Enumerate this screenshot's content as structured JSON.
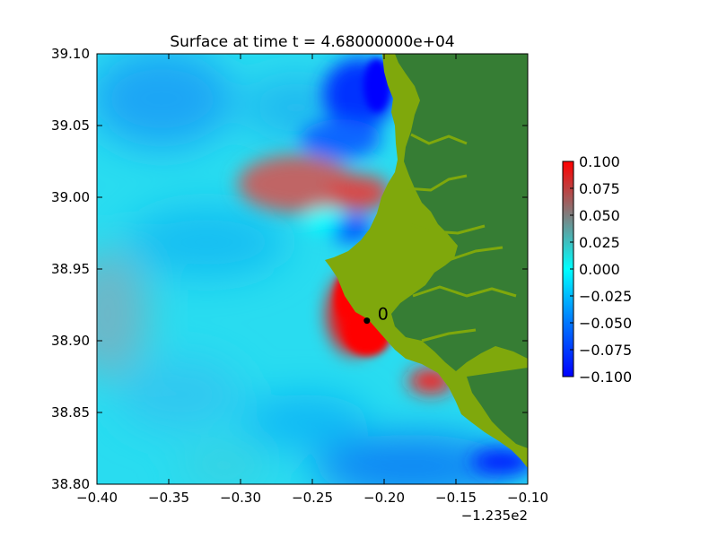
{
  "chart_data": {
    "type": "heatmap",
    "title": "Surface at time t = 4.68000000e+04",
    "xlim": [
      -0.4,
      -0.1
    ],
    "ylim": [
      38.8,
      39.1
    ],
    "x_tick_labels": [
      "−0.40",
      "−0.35",
      "−0.30",
      "−0.25",
      "−0.20",
      "−0.15",
      "−0.10"
    ],
    "x_ticks": [
      -0.4,
      -0.35,
      -0.3,
      -0.25,
      -0.2,
      -0.15,
      -0.1
    ],
    "x_offset_label": "−1.235e2",
    "y_tick_labels": [
      "38.80",
      "38.85",
      "38.90",
      "38.95",
      "39.00",
      "39.05",
      "39.10"
    ],
    "y_ticks": [
      38.8,
      38.85,
      38.9,
      38.95,
      39.0,
      39.05,
      39.1
    ],
    "colorbar": {
      "range": [
        -0.1,
        0.1
      ],
      "tick_labels": [
        "0.100",
        "0.075",
        "0.050",
        "0.025",
        "0.000",
        "−0.025",
        "−0.050",
        "−0.075",
        "−0.100"
      ],
      "ticks": [
        0.1,
        0.075,
        0.05,
        0.025,
        0.0,
        -0.025,
        -0.05,
        -0.075,
        -0.1
      ],
      "colors": [
        "#0000ff",
        "#0077ff",
        "#00ffff",
        "#ff0000"
      ]
    },
    "gauges": [
      {
        "label": "0",
        "x": -0.212,
        "y": 38.914
      }
    ],
    "land_colors": {
      "lowland": "#7fa80c",
      "highland": "#367d34"
    },
    "grid": false
  }
}
